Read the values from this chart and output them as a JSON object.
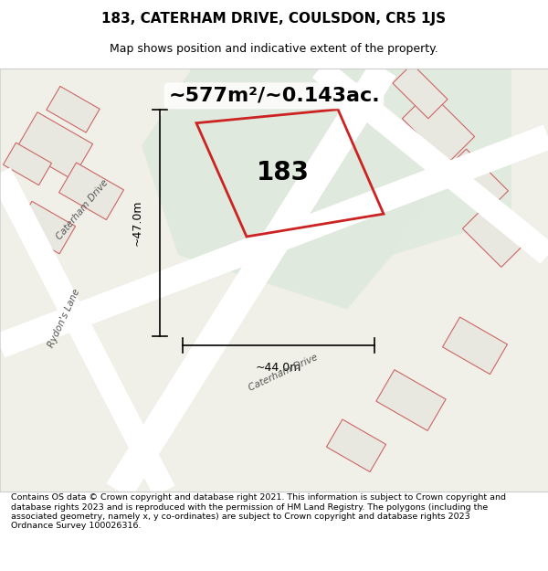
{
  "title_line1": "183, CATERHAM DRIVE, COULSDON, CR5 1JS",
  "title_line2": "Map shows position and indicative extent of the property.",
  "area_text": "~577m²/~0.143ac.",
  "label_183": "183",
  "dim_vertical": "~47.0m",
  "dim_horizontal": "~44.0m",
  "footer_text": "Contains OS data © Crown copyright and database right 2021. This information is subject to Crown copyright and database rights 2023 and is reproduced with the permission of HM Land Registry. The polygons (including the associated geometry, namely x, y co-ordinates) are subject to Crown copyright and database rights 2023 Ordnance Survey 100026316.",
  "bg_color": "#f5f5f0",
  "map_bg": "#f0f0e8",
  "plot_fill": "#d6e8d6",
  "plot_stroke": "#cc2222",
  "road_color": "#ffffff",
  "building_fill": "#e8e8e0",
  "building_stroke": "#cc6666",
  "street_label1": "Caterham Drive",
  "street_label2": "Rydon's Lane",
  "street_label3": "Caterham Drive"
}
